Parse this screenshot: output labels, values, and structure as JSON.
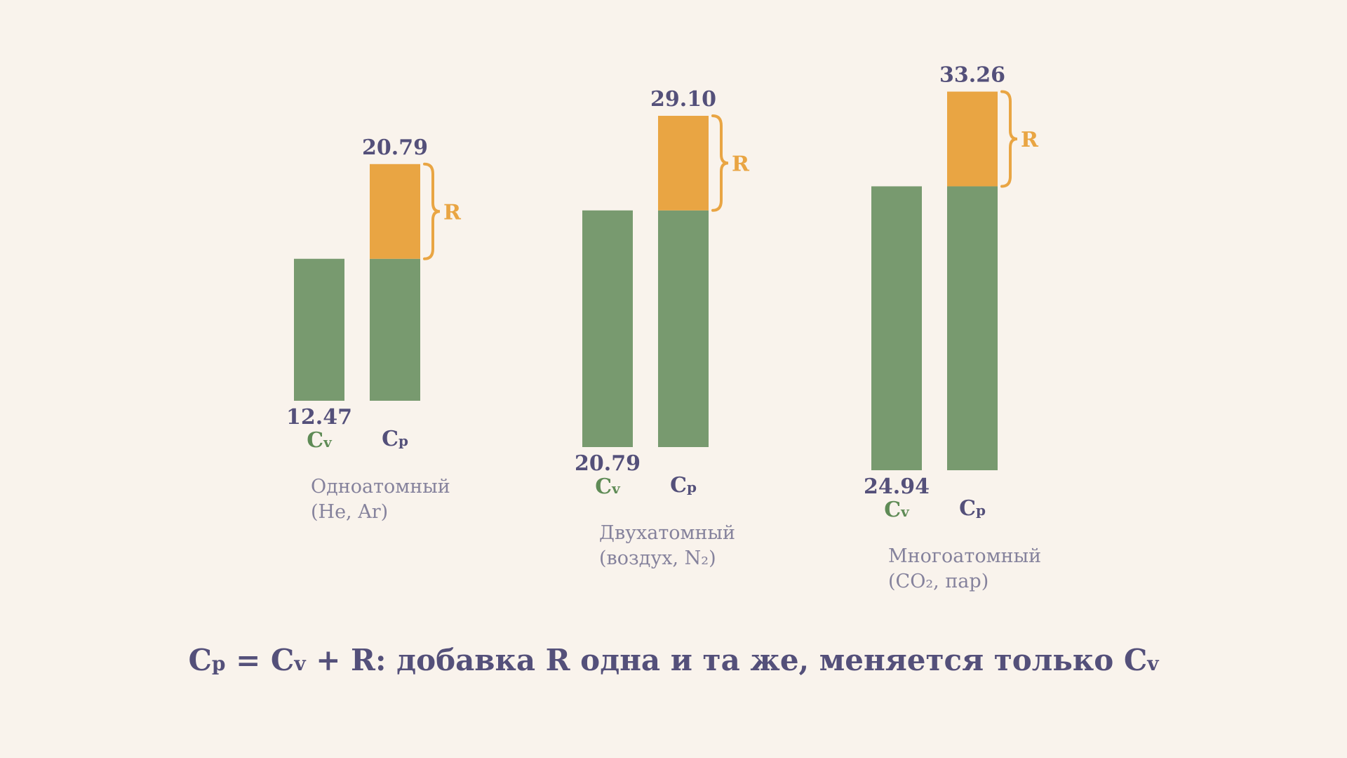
{
  "colors": {
    "background": "#f9f3ec",
    "cv": "#789a6f",
    "r": "#e9a543",
    "text": "#54507a",
    "cv_text": "#5f8b56",
    "muted": "#85829c"
  },
  "chart_data": {
    "type": "bar",
    "categories": [
      "Одноатомный (He, Ar)",
      "Двухатомный (воздух, N₂)",
      "Многоатомный (CO₂, пар)"
    ],
    "category_lines": [
      [
        "Одноатомный",
        "(He, Ar)"
      ],
      [
        "Двухатомный",
        "(воздух, N₂)"
      ],
      [
        "Многоатомный",
        "(CO₂, пар)"
      ]
    ],
    "series": [
      {
        "name": "Cv",
        "values": [
          12.47,
          20.79,
          24.94
        ]
      },
      {
        "name": "Cp",
        "values": [
          20.79,
          29.1,
          33.26
        ]
      }
    ],
    "cv_value_labels": [
      "12.47",
      "20.79",
      "24.94"
    ],
    "cp_value_labels": [
      "20.79",
      "29.10",
      "33.26"
    ],
    "segment_label": "R",
    "bar_labels": {
      "cv": {
        "main": "C",
        "sub": "v"
      },
      "cp": {
        "main": "C",
        "sub": "p"
      }
    },
    "caption": [
      {
        "t": "C"
      },
      {
        "t": "p",
        "sub": true
      },
      {
        "t": " = C"
      },
      {
        "t": "v",
        "sub": true
      },
      {
        "t": " + R: добавка R одна и та же, меняется только C"
      },
      {
        "t": "v",
        "sub": true
      }
    ]
  }
}
